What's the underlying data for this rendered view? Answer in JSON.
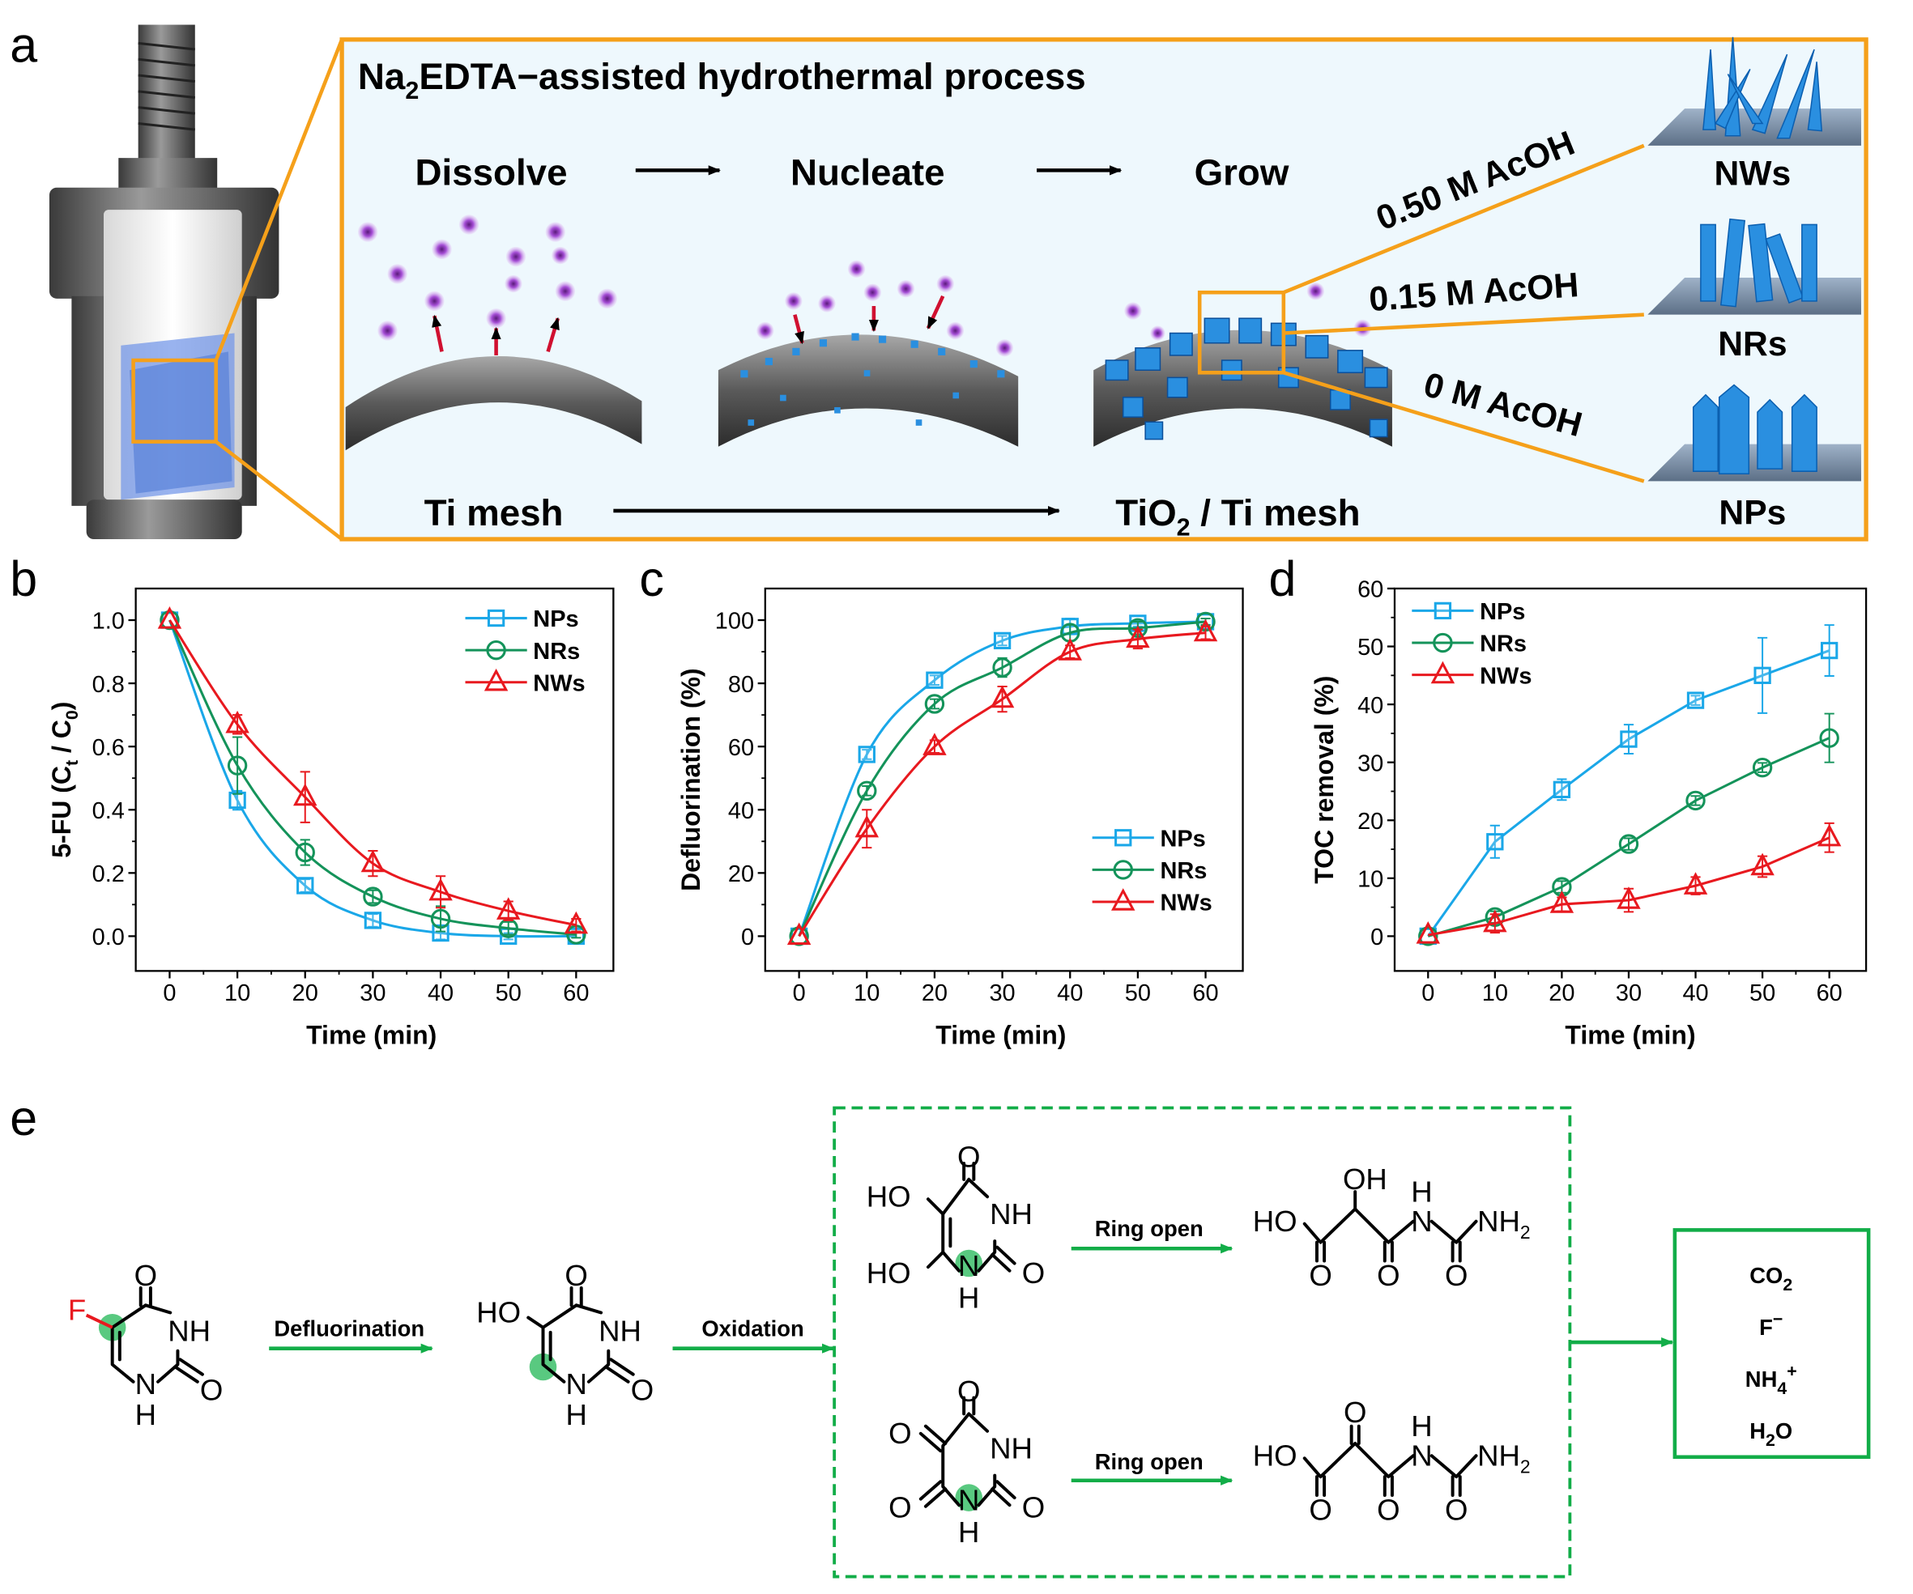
{
  "panel_labels": {
    "a": "a",
    "b": "b",
    "c": "c",
    "d": "d",
    "e": "e"
  },
  "colors": {
    "orange": "#f5a01a",
    "box_bg": "#eef8fd",
    "NPs": "#1aa7e8",
    "NRs": "#14935a",
    "NWs": "#e8191f",
    "green_arrow": "#12ad48",
    "mesh_gray": "#8c8c8c",
    "crystal_blue": "#2a8fe0"
  },
  "panel_a": {
    "title": {
      "prefix": "Na",
      "sub": "2",
      "rest": "EDTA−assisted hydrothermal process"
    },
    "steps": [
      "Dissolve",
      "Nucleate",
      "Grow"
    ],
    "bottom_left": "Ti mesh",
    "bottom_right": {
      "prefix": "TiO",
      "sub": "2",
      "rest": " / Ti mesh"
    },
    "conditions": [
      "0.50 M AcOH",
      "0.15 M AcOH",
      "0 M AcOH"
    ],
    "products": [
      "NWs",
      "NRs",
      "NPs"
    ]
  },
  "chart_data": [
    {
      "panel": "b",
      "type": "line",
      "xlabel": "Time (min)",
      "ylabel": {
        "main": "5-FU (C",
        "sub1": "t",
        "mid": " / C",
        "sub2": "0",
        "end": ")"
      },
      "x": [
        0,
        10,
        20,
        30,
        40,
        50,
        60
      ],
      "xlim": [
        -5,
        65.5
      ],
      "ylim": [
        -0.11,
        1.1
      ],
      "xticks": [
        0,
        10,
        20,
        30,
        40,
        50,
        60
      ],
      "yticks": [
        0,
        0.2,
        0.4,
        0.6,
        0.8,
        1.0
      ],
      "ytick_labels": [
        "0.0",
        "0.2",
        "0.4",
        "0.6",
        "0.8",
        "1.0"
      ],
      "legend": "top-right",
      "grid": false,
      "smooth_fit": true,
      "series": [
        {
          "name": "NPs",
          "marker": "square",
          "values": [
            1.0,
            0.43,
            0.16,
            0.05,
            0.01,
            0.0,
            0.0
          ],
          "errors": [
            0,
            0.03,
            0.02,
            0.02,
            0.02,
            0.01,
            0
          ]
        },
        {
          "name": "NRs",
          "marker": "circle",
          "values": [
            1.0,
            0.54,
            0.265,
            0.125,
            0.055,
            0.025,
            0.005
          ],
          "errors": [
            0,
            0.09,
            0.04,
            0.02,
            0.04,
            0.02,
            0.01
          ]
        },
        {
          "name": "NWs",
          "marker": "triangle",
          "values": [
            1.0,
            0.67,
            0.44,
            0.23,
            0.14,
            0.08,
            0.035
          ],
          "errors": [
            0,
            0.03,
            0.08,
            0.04,
            0.05,
            0.03,
            0.02
          ]
        }
      ]
    },
    {
      "panel": "c",
      "type": "line",
      "xlabel": "Time (min)",
      "ylabel": "Defluorination (%)",
      "x": [
        0,
        10,
        20,
        30,
        40,
        50,
        60
      ],
      "xlim": [
        -5,
        65.5
      ],
      "ylim": [
        -11,
        110
      ],
      "xticks": [
        0,
        10,
        20,
        30,
        40,
        50,
        60
      ],
      "yticks": [
        0,
        20,
        40,
        60,
        80,
        100
      ],
      "ytick_labels": [
        "0",
        "20",
        "40",
        "60",
        "80",
        "100"
      ],
      "legend": "bottom-right",
      "grid": false,
      "smooth_fit": true,
      "series": [
        {
          "name": "NPs",
          "marker": "square",
          "values": [
            0,
            57.5,
            81,
            93.5,
            98,
            99,
            99.5
          ],
          "errors": [
            0,
            1.5,
            1.5,
            1.5,
            2.5,
            1,
            1
          ]
        },
        {
          "name": "NRs",
          "marker": "circle",
          "values": [
            0,
            46,
            73.5,
            85,
            96,
            97.5,
            99.5
          ],
          "errors": [
            0,
            1.5,
            1.5,
            3,
            2.5,
            2,
            1
          ]
        },
        {
          "name": "NWs",
          "marker": "triangle",
          "values": [
            0,
            34,
            60,
            75,
            90,
            94,
            96
          ],
          "errors": [
            0,
            6,
            2,
            4,
            2,
            3,
            2
          ]
        }
      ]
    },
    {
      "panel": "d",
      "type": "line",
      "xlabel": "Time (min)",
      "ylabel": "TOC removal (%)",
      "x": [
        0,
        10,
        20,
        30,
        40,
        50,
        60
      ],
      "xlim": [
        -5,
        65.5
      ],
      "ylim": [
        -6,
        60
      ],
      "xticks": [
        0,
        10,
        20,
        30,
        40,
        50,
        60
      ],
      "yticks": [
        0,
        10,
        20,
        30,
        40,
        50,
        60
      ],
      "ytick_labels": [
        "0",
        "10",
        "20",
        "30",
        "40",
        "50",
        "60"
      ],
      "legend": "top-left",
      "grid": false,
      "smooth_fit": false,
      "series": [
        {
          "name": "NPs",
          "marker": "square",
          "values": [
            0,
            16.3,
            25.3,
            34,
            40.7,
            45,
            49.3
          ],
          "errors": [
            0,
            2.8,
            1.8,
            2.5,
            0.8,
            6.5,
            4.4
          ]
        },
        {
          "name": "NRs",
          "marker": "circle",
          "values": [
            0,
            3.3,
            8.5,
            15.9,
            23.4,
            29.1,
            34.2
          ],
          "errors": [
            0,
            1,
            1,
            1,
            0.8,
            0.8,
            4.2
          ]
        },
        {
          "name": "NWs",
          "marker": "triangle",
          "values": [
            0.2,
            2.2,
            5.5,
            6.2,
            8.7,
            12,
            17
          ],
          "errors": [
            0,
            1.6,
            1.2,
            2,
            1.5,
            1.8,
            2.5
          ]
        }
      ]
    }
  ],
  "panel_e": {
    "arrows": {
      "defluorination": "Defluorination",
      "oxidation": "Oxidation",
      "ring_open_1": "Ring open",
      "ring_open_2": "Ring open"
    },
    "atoms": {
      "O": "O",
      "NH": "NH",
      "N": "N",
      "H": "H",
      "F": "F",
      "HO": "HO",
      "OH": "OH",
      "NH2_main": "NH",
      "NH2_sub": "2"
    },
    "final_products": [
      {
        "main": "CO",
        "sub": "2",
        "sup": ""
      },
      {
        "main": "F",
        "sub": "",
        "sup": "−"
      },
      {
        "main": "NH",
        "sub": "4",
        "sup": "+"
      },
      {
        "main": "H",
        "sub": "2",
        "sup": "",
        "tail": "O"
      }
    ]
  }
}
